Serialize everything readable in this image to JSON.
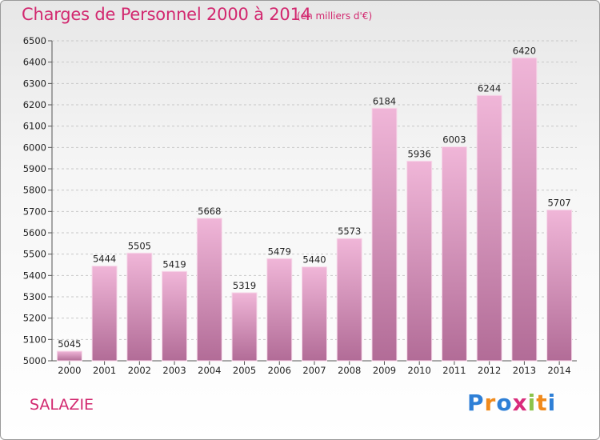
{
  "header": {
    "title": "Charges de Personnel 2000 à 2014",
    "subtitle": "(en milliers d'€)"
  },
  "footer": {
    "place": "SALAZIE",
    "logo_letters": [
      "P",
      "r",
      "o",
      "x",
      "i",
      "t",
      "i"
    ],
    "logo_colors": [
      "#2e7fd6",
      "#f08a1c",
      "#2e7fd6",
      "#d92c7c",
      "#8bc34a",
      "#f08a1c",
      "#2e7fd6"
    ]
  },
  "colors": {
    "accent": "#d2286f",
    "bar_light": "#f0b6d8",
    "bar_dark": "#b26c97",
    "grid": "#c7c7c7"
  },
  "chart_data": {
    "type": "bar",
    "title": "Charges de Personnel 2000 à 2014",
    "subtitle": "(en milliers d'€)",
    "categories": [
      "2000",
      "2001",
      "2002",
      "2003",
      "2004",
      "2005",
      "2006",
      "2007",
      "2008",
      "2009",
      "2010",
      "2011",
      "2012",
      "2013",
      "2014"
    ],
    "values": [
      5045,
      5444,
      5505,
      5419,
      5668,
      5319,
      5479,
      5440,
      5573,
      6184,
      5936,
      6003,
      6244,
      6420,
      5707
    ],
    "ylim": [
      5000,
      6500
    ],
    "yticks": [
      5000,
      5100,
      5200,
      5300,
      5400,
      5500,
      5600,
      5700,
      5800,
      5900,
      6000,
      6100,
      6200,
      6300,
      6400,
      6500
    ],
    "grid": true,
    "data_labels": true,
    "xlabel": "",
    "ylabel": ""
  }
}
